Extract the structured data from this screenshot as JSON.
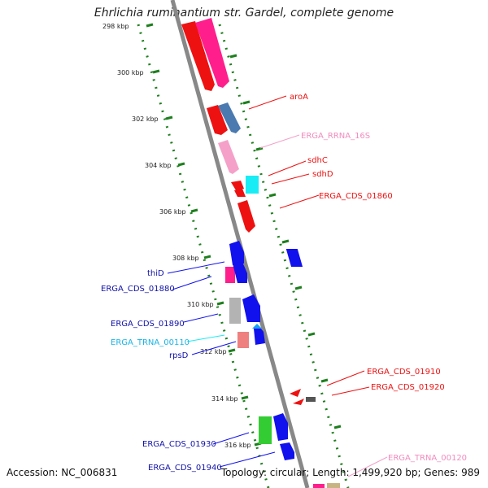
{
  "title": "Ehrlichia ruminantium str. Gardel, complete genome",
  "footer": {
    "accession": "Accession: NC_006831",
    "topology": "Topology: circular; Length: 1,499,920 bp; Genes: 989"
  },
  "colors": {
    "red": "#ee1111",
    "magenta": "#ff1e8c",
    "steelblue": "#4a7ab0",
    "pink": "#f5a0c8",
    "cyan": "#19ecf4",
    "blue": "#1111ee",
    "gray": "#b3b3b3",
    "salmon": "#ee8080",
    "green": "#33cc33",
    "tan": "#c8b482",
    "backbone": "#888888",
    "tick": "#1e7f1e"
  },
  "kbp_labels": [
    "298 kbp",
    "300 kbp",
    "302 kbp",
    "304 kbp",
    "306 kbp",
    "308 kbp",
    "310 kbp",
    "312 kbp",
    "314 kbp",
    "316 kbp"
  ],
  "gene_labels": {
    "aroA": "aroA",
    "erga_rrna_16s": "ERGA_RRNA_16S",
    "sdhC": "sdhC",
    "sdhD": "sdhD",
    "erga_cds_01860": "ERGA_CDS_01860",
    "thiD": "thiD",
    "erga_cds_01880": "ERGA_CDS_01880",
    "erga_cds_01890": "ERGA_CDS_01890",
    "erga_trna_00110": "ERGA_TRNA_00110",
    "rpsD": "rpsD",
    "erga_cds_01910": "ERGA_CDS_01910",
    "erga_cds_01920": "ERGA_CDS_01920",
    "erga_cds_01930": "ERGA_CDS_01930",
    "erga_cds_01940": "ERGA_CDS_01940",
    "erga_trna_00120": "ERGA_TRNA_00120"
  }
}
